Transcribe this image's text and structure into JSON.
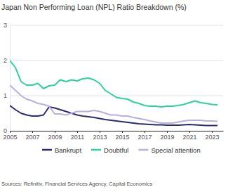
{
  "chart_data": {
    "type": "line",
    "title": "Japan Non Performing Loan (NPL) Ratio Breakdown (%)",
    "source": "Sources: Refinitiv, Financial Services Agency, Capital Economics",
    "x": [
      2005,
      2005.5,
      2006,
      2006.5,
      2007,
      2007.5,
      2008,
      2008.5,
      2009,
      2009.5,
      2010,
      2010.5,
      2011,
      2011.5,
      2012,
      2012.5,
      2013,
      2013.5,
      2014,
      2014.5,
      2015,
      2015.5,
      2016,
      2016.5,
      2017,
      2017.5,
      2018,
      2018.5,
      2019,
      2019.5,
      2020,
      2020.5,
      2021,
      2021.5,
      2022,
      2022.5,
      2023,
      2023.5
    ],
    "series": [
      {
        "name": "Bankrupt",
        "color": "#2e2a6e",
        "values": [
          0.72,
          0.6,
          0.5,
          0.45,
          0.42,
          0.42,
          0.45,
          0.68,
          0.65,
          0.6,
          0.55,
          0.5,
          0.45,
          0.42,
          0.4,
          0.38,
          0.35,
          0.32,
          0.3,
          0.28,
          0.26,
          0.24,
          0.22,
          0.2,
          0.19,
          0.18,
          0.17,
          0.17,
          0.16,
          0.16,
          0.16,
          0.17,
          0.18,
          0.17,
          0.16,
          0.15,
          0.15,
          0.15
        ]
      },
      {
        "name": "Doubtful",
        "color": "#2bd29b",
        "values": [
          2.0,
          1.8,
          1.4,
          1.3,
          1.3,
          1.35,
          1.2,
          1.28,
          1.3,
          1.45,
          1.4,
          1.45,
          1.42,
          1.48,
          1.5,
          1.45,
          1.35,
          1.15,
          1.05,
          0.95,
          0.92,
          0.9,
          0.82,
          0.78,
          0.72,
          0.7,
          0.7,
          0.68,
          0.7,
          0.7,
          0.72,
          0.75,
          0.8,
          0.85,
          0.8,
          0.78,
          0.75,
          0.74
        ]
      },
      {
        "name": "Special attention",
        "color": "#b9aee0",
        "values": [
          1.3,
          1.15,
          1.0,
          0.9,
          0.85,
          0.78,
          0.75,
          0.7,
          0.48,
          0.48,
          0.45,
          0.5,
          0.55,
          0.55,
          0.55,
          0.58,
          0.55,
          0.5,
          0.45,
          0.45,
          0.42,
          0.42,
          0.38,
          0.35,
          0.32,
          0.28,
          0.25,
          0.22,
          0.22,
          0.22,
          0.25,
          0.28,
          0.3,
          0.3,
          0.3,
          0.28,
          0.28,
          0.27
        ]
      }
    ],
    "xlim": [
      2005,
      2024
    ],
    "xticks": [
      2005,
      2007,
      2009,
      2011,
      2013,
      2015,
      2017,
      2019,
      2021,
      2023
    ],
    "ylim": [
      0,
      3
    ],
    "yticks": [
      0,
      1,
      2,
      3
    ],
    "grid": true,
    "legend": "bottom"
  }
}
